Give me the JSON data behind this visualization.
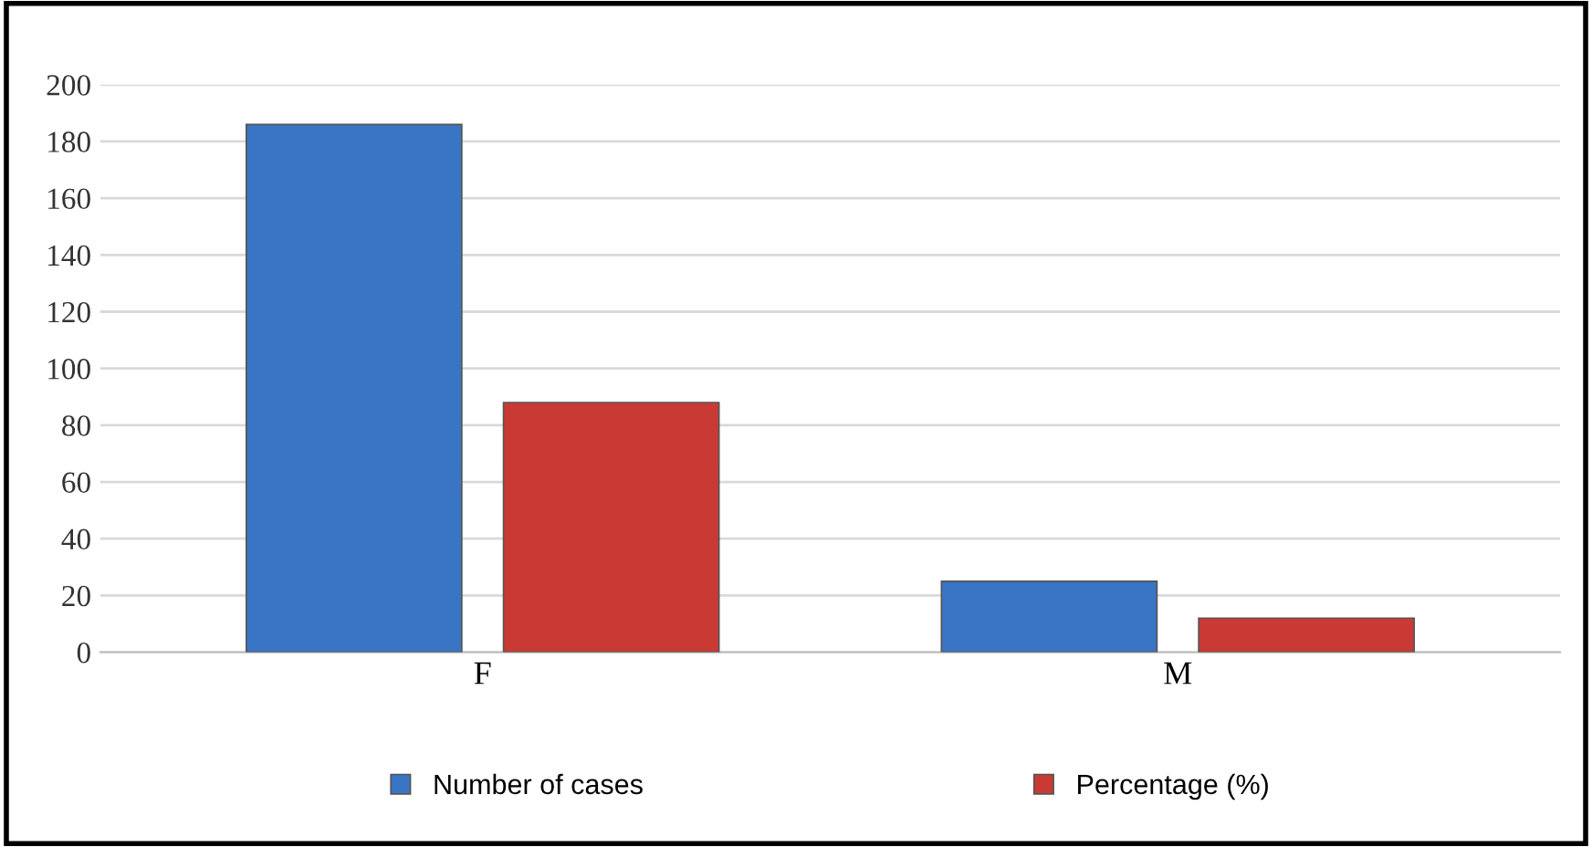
{
  "chart_data": {
    "type": "bar",
    "categories": [
      "F",
      "M"
    ],
    "series": [
      {
        "name": "Number of cases",
        "color": "#3a74c4",
        "values": [
          186,
          25
        ]
      },
      {
        "name": "Percentage (%)",
        "color": "#c93a35",
        "values": [
          88,
          12
        ]
      }
    ],
    "ylim": [
      0,
      200
    ],
    "yticks": [
      0,
      20,
      40,
      60,
      80,
      100,
      120,
      140,
      160,
      180,
      200
    ],
    "grid": "y",
    "legend": "bottom"
  }
}
